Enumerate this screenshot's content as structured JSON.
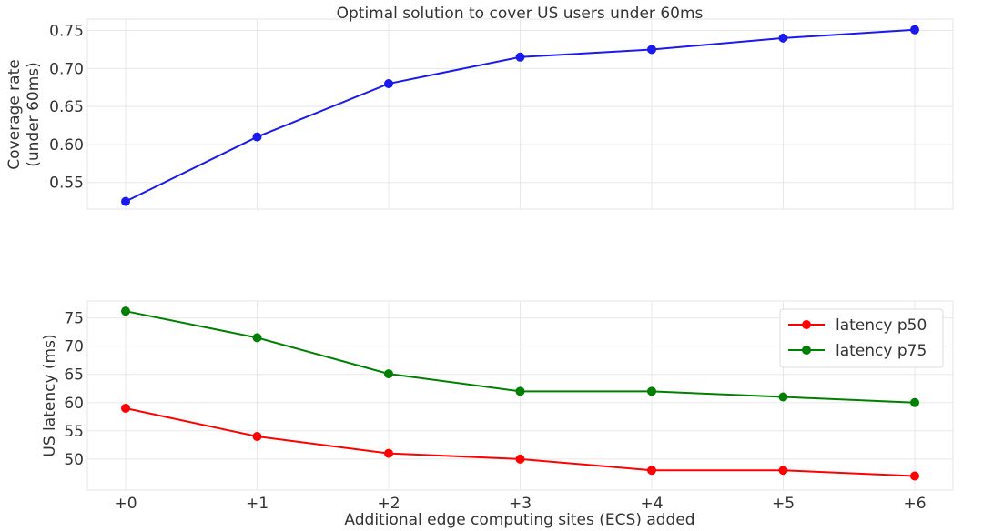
{
  "chart_data": [
    {
      "type": "line",
      "title": "Optimal solution to cover US users under 60ms",
      "xlabel": "",
      "ylabel_lines": [
        "Coverage rate",
        "(under 60ms)"
      ],
      "categories": [
        "+0",
        "+1",
        "+2",
        "+3",
        "+4",
        "+5",
        "+6"
      ],
      "series": [
        {
          "name": "",
          "color": "#1a1aee",
          "values": [
            0.525,
            0.61,
            0.68,
            0.715,
            0.725,
            0.74,
            0.751
          ]
        }
      ],
      "ylim": [
        0.515,
        0.765
      ],
      "yticks": [
        "0.55",
        "0.60",
        "0.65",
        "0.70",
        "0.75"
      ],
      "ytick_values": [
        0.55,
        0.6,
        0.65,
        0.7,
        0.75
      ],
      "grid": true,
      "legend": "none"
    },
    {
      "type": "line",
      "title": "",
      "xlabel": "Additional edge computing sites (ECS) added",
      "ylabel_lines": [
        "US latency (ms)"
      ],
      "categories": [
        "+0",
        "+1",
        "+2",
        "+3",
        "+4",
        "+5",
        "+6"
      ],
      "series": [
        {
          "name": "latency p50",
          "color": "#ff0000",
          "values": [
            59,
            54,
            51,
            50,
            48,
            48,
            47
          ]
        },
        {
          "name": "latency p75",
          "color": "#008000",
          "values": [
            76.2,
            71.5,
            65.1,
            62,
            62,
            61,
            60
          ]
        }
      ],
      "ylim": [
        44.5,
        78
      ],
      "yticks": [
        "50",
        "55",
        "60",
        "65",
        "70",
        "75"
      ],
      "ytick_values": [
        50,
        55,
        60,
        65,
        70,
        75
      ],
      "grid": true,
      "legend": "top-right"
    }
  ]
}
